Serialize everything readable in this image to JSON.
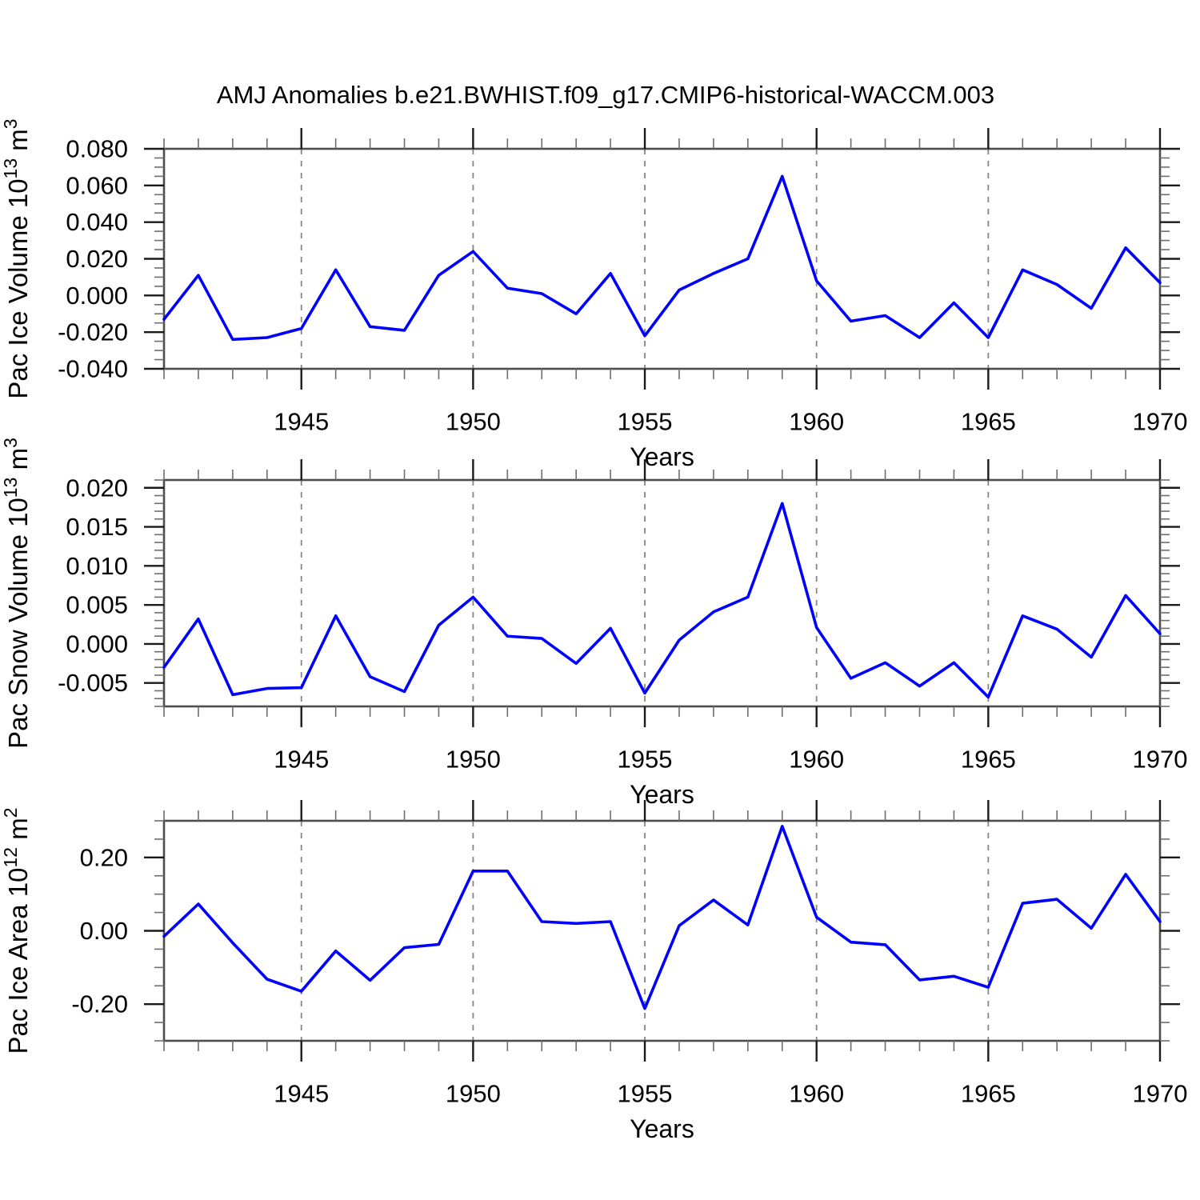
{
  "chart_data": {
    "type": "line",
    "title": "AMJ Anomalies b.e21.BWHIST.f09_g17.CMIP6-historical-WACCM.003",
    "line_color": "#0000ff",
    "x": [
      1941,
      1942,
      1943,
      1944,
      1945,
      1946,
      1947,
      1948,
      1949,
      1950,
      1951,
      1952,
      1953,
      1954,
      1955,
      1956,
      1957,
      1958,
      1959,
      1960,
      1961,
      1962,
      1963,
      1964,
      1965,
      1966,
      1967,
      1968,
      1969,
      1970
    ],
    "x_axis": {
      "label": "Years",
      "range": [
        1941,
        1970
      ],
      "major_years": [
        1945,
        1950,
        1955,
        1960,
        1965,
        1970
      ],
      "labeled_years": [
        1945,
        1950,
        1955,
        1960,
        1965,
        1970
      ],
      "gridline_years": [
        1945,
        1950,
        1955,
        1960,
        1965
      ],
      "minor_step": 1
    },
    "panels": [
      {
        "name": "pac-ice-volume",
        "ylabel": {
          "base": "Pac Ice Volume 10",
          "exp": "13",
          "unit": " m",
          "unit_exp": "3"
        },
        "ylim": [
          -0.04,
          0.08
        ],
        "y_major_ticks": [
          0.08,
          0.06,
          0.04,
          0.02,
          0.0,
          -0.02,
          -0.04
        ],
        "y_tick_labels": [
          "0.080",
          "0.060",
          "0.040",
          "0.020",
          "0.000",
          "-0.020",
          "-0.040"
        ],
        "y_minor_step": 0.005,
        "values": [
          -0.013,
          0.011,
          -0.024,
          -0.023,
          -0.018,
          0.014,
          -0.017,
          -0.019,
          0.011,
          0.024,
          0.004,
          0.001,
          -0.01,
          0.012,
          -0.022,
          0.003,
          0.012,
          0.02,
          0.065,
          0.008,
          -0.014,
          -0.011,
          -0.023,
          -0.004,
          -0.023,
          0.014,
          0.006,
          -0.007,
          0.026,
          0.007
        ]
      },
      {
        "name": "pac-snow-volume",
        "ylabel": {
          "base": "Pac Snow Volume 10",
          "exp": "13",
          "unit": " m",
          "unit_exp": "3"
        },
        "ylim": [
          -0.008,
          0.021
        ],
        "y_major_ticks": [
          0.02,
          0.015,
          0.01,
          0.005,
          0.0,
          -0.005
        ],
        "y_tick_labels": [
          "0.020",
          "0.015",
          "0.010",
          "0.005",
          "0.000",
          "-0.005"
        ],
        "y_minor_step": 0.001,
        "values": [
          -0.003,
          0.0032,
          -0.0065,
          -0.0057,
          -0.0056,
          0.0036,
          -0.0042,
          -0.0061,
          0.0024,
          0.006,
          0.001,
          0.0007,
          -0.0025,
          0.002,
          -0.0063,
          0.0005,
          0.0041,
          0.006,
          0.018,
          0.0021,
          -0.0044,
          -0.0024,
          -0.0054,
          -0.0024,
          -0.0068,
          0.0036,
          0.0019,
          -0.0017,
          0.0062,
          0.0013
        ]
      },
      {
        "name": "pac-ice-area",
        "ylabel": {
          "base": "Pac Ice Area 10",
          "exp": "12",
          "unit": " m",
          "unit_exp": "2"
        },
        "ylim": [
          -0.3,
          0.3
        ],
        "y_major_ticks": [
          0.2,
          0.0,
          -0.2
        ],
        "y_tick_labels": [
          "0.20",
          "0.00",
          "-0.20"
        ],
        "y_minor_step": 0.05,
        "values": [
          -0.015,
          0.073,
          -0.033,
          -0.132,
          -0.165,
          -0.055,
          -0.135,
          -0.046,
          -0.037,
          0.163,
          0.163,
          0.025,
          0.02,
          0.025,
          -0.212,
          0.014,
          0.084,
          0.016,
          0.285,
          0.037,
          -0.031,
          -0.038,
          -0.134,
          -0.124,
          -0.154,
          0.075,
          0.086,
          0.007,
          0.154,
          0.025
        ]
      }
    ]
  }
}
